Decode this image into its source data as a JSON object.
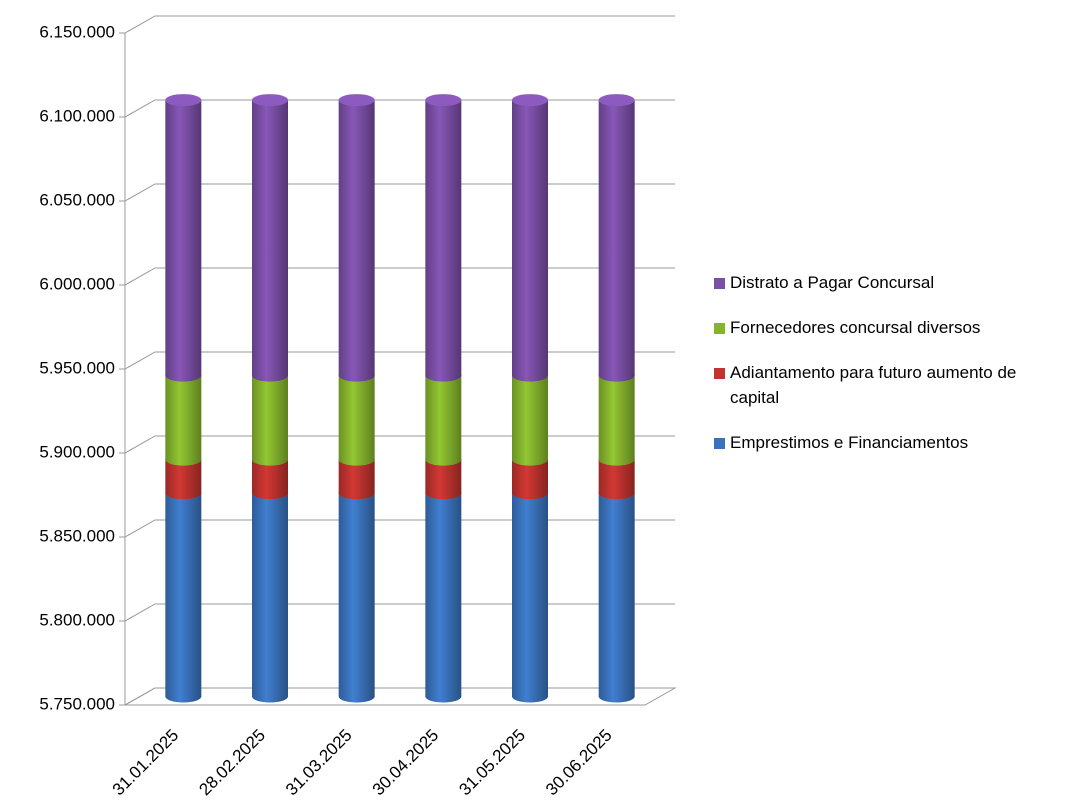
{
  "chart_data": {
    "type": "bar3d-stacked",
    "categories": [
      "31.01.2025",
      "28.02.2025",
      "31.03.2025",
      "30.04.2025",
      "31.05.2025",
      "30.06.2025"
    ],
    "series": [
      {
        "name": "Emprestimos e Financiamentos",
        "color": "#3a73bd",
        "values": [
          5871000,
          5871000,
          5871000,
          5871000,
          5871000,
          5871000
        ]
      },
      {
        "name": "Adiantamento para futuro aumento de capital",
        "color": "#c0332e",
        "values": [
          20000,
          20000,
          20000,
          20000,
          20000,
          20000
        ]
      },
      {
        "name": "Fornecedores concursal diversos",
        "color": "#86b52d",
        "values": [
          50000,
          50000,
          50000,
          50000,
          50000,
          50000
        ]
      },
      {
        "name": "Distrato a Pagar Concursal",
        "color": "#7b4fa6",
        "values": [
          164000,
          164000,
          164000,
          164000,
          164000,
          164000
        ]
      }
    ],
    "ylim": [
      5750000,
      6150000
    ],
    "yticks": [
      {
        "value": 5750000,
        "label": "5.750.000"
      },
      {
        "value": 5800000,
        "label": "5.800.000"
      },
      {
        "value": 5850000,
        "label": "5.850.000"
      },
      {
        "value": 5900000,
        "label": "5.900.000"
      },
      {
        "value": 5950000,
        "label": "5.950.000"
      },
      {
        "value": 6000000,
        "label": "6.000.000"
      },
      {
        "value": 6050000,
        "label": "6.050.000"
      },
      {
        "value": 6100000,
        "label": "6.100.000"
      },
      {
        "value": 6150000,
        "label": "6.150.000"
      }
    ],
    "grid": true,
    "legend": "right"
  }
}
